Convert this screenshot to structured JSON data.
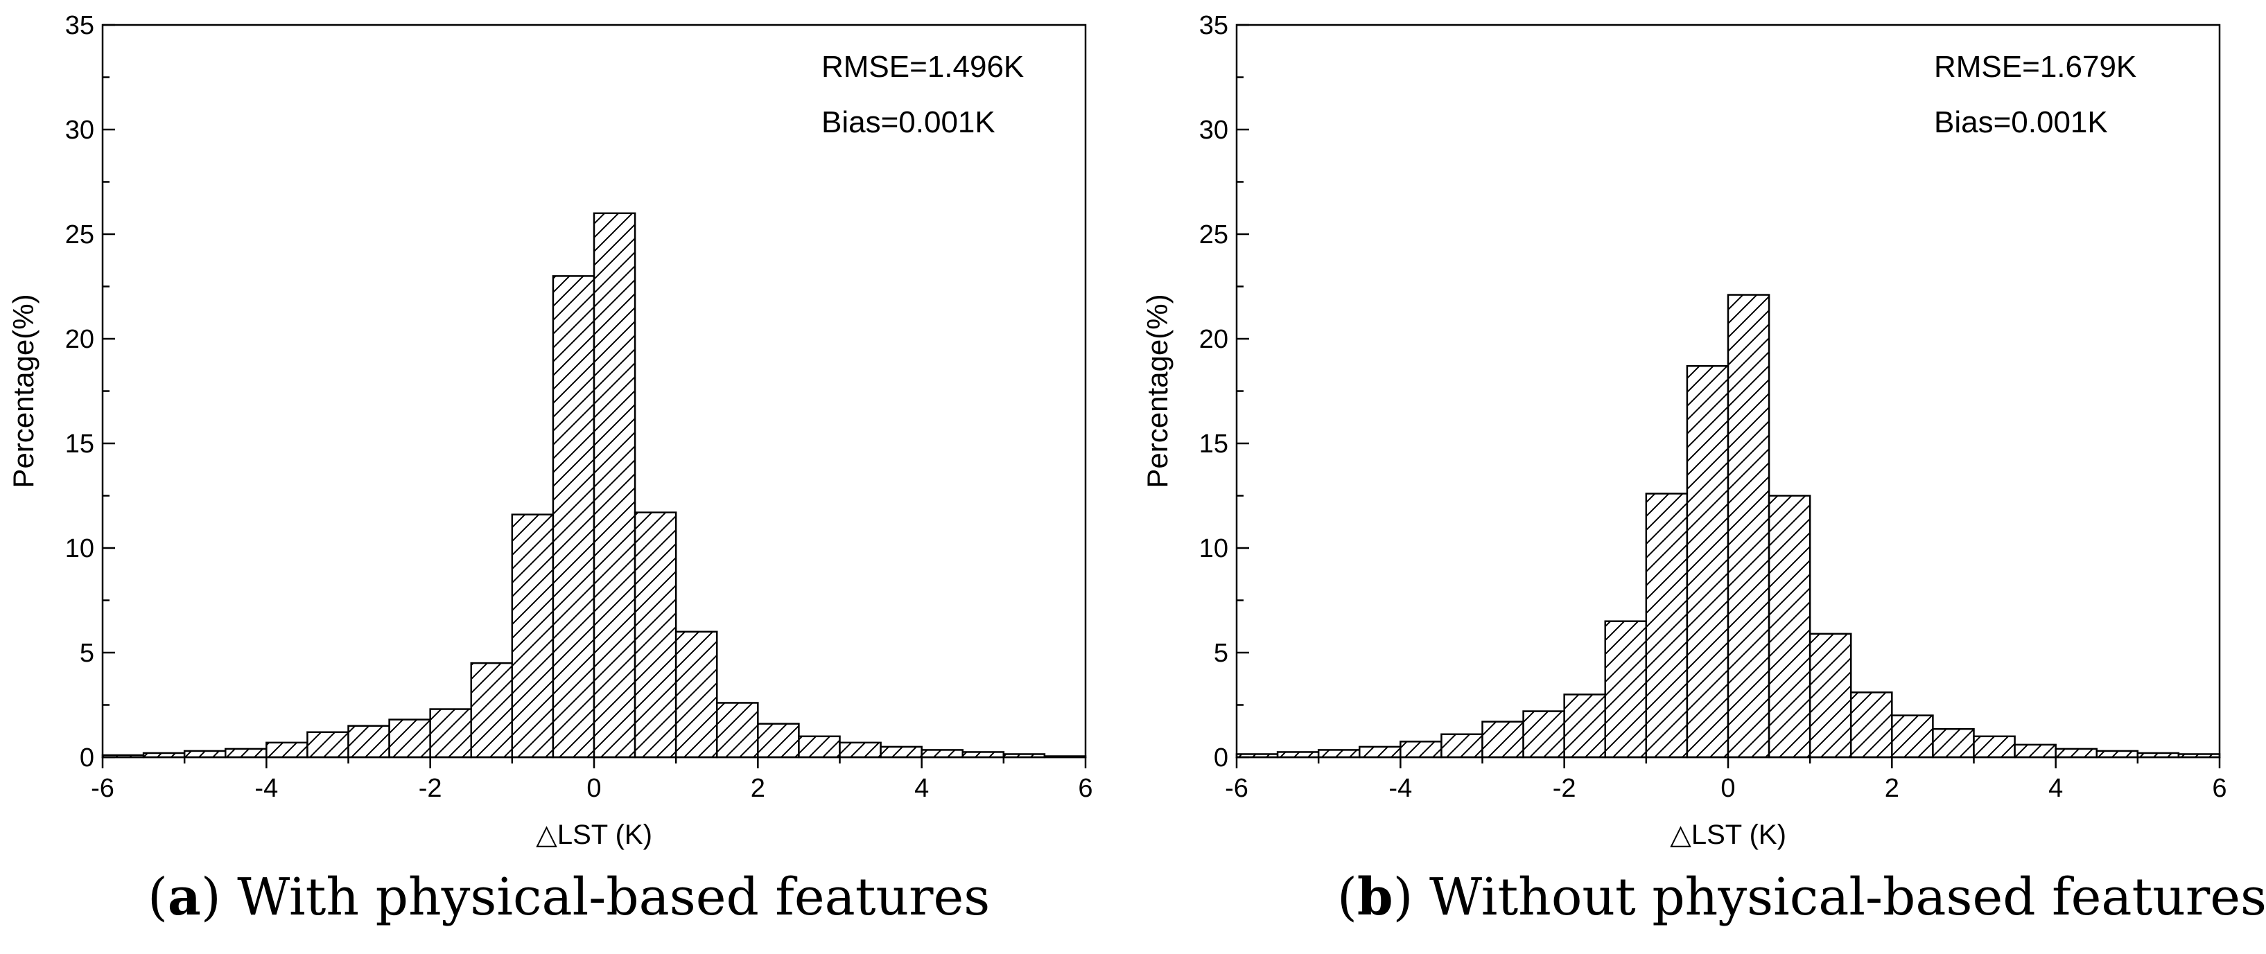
{
  "chart_data": [
    {
      "type": "bar",
      "caption_letter": "a",
      "caption_text": " With physical-based features",
      "xlabel": "△LST (K)",
      "ylabel": "Percentage(%)",
      "xlim": [
        -6,
        6
      ],
      "ylim": [
        0,
        35
      ],
      "xticks": [
        "-6",
        "-4",
        "-2",
        "0",
        "2",
        "4",
        "6"
      ],
      "yticks": [
        "0",
        "5",
        "10",
        "15",
        "20",
        "25",
        "30",
        "35"
      ],
      "annotations": [
        "RMSE=1.496K",
        "Bias=0.001K"
      ],
      "bin_edges": [
        -6,
        -5.5,
        -5,
        -4.5,
        -4,
        -3.5,
        -3,
        -2.5,
        -2,
        -1.5,
        -1,
        -0.5,
        0,
        0.5,
        1,
        1.5,
        2,
        2.5,
        3,
        3.5,
        4,
        4.5,
        5,
        5.5,
        6
      ],
      "values": [
        0.1,
        0.2,
        0.3,
        0.4,
        0.7,
        1.2,
        1.5,
        1.8,
        2.3,
        4.5,
        11.6,
        23.0,
        26.0,
        11.7,
        6.0,
        2.6,
        1.6,
        1.0,
        0.7,
        0.5,
        0.35,
        0.25,
        0.15,
        0.05
      ]
    },
    {
      "type": "bar",
      "caption_letter": "b",
      "caption_text": " Without physical-based features",
      "xlabel": "△LST (K)",
      "ylabel": "Percentage(%)",
      "xlim": [
        -6,
        6
      ],
      "ylim": [
        0,
        35
      ],
      "xticks": [
        "-6",
        "-4",
        "-2",
        "0",
        "2",
        "4",
        "6"
      ],
      "yticks": [
        "0",
        "5",
        "10",
        "15",
        "20",
        "25",
        "30",
        "35"
      ],
      "annotations": [
        "RMSE=1.679K",
        "Bias=0.001K"
      ],
      "bin_edges": [
        -6,
        -5.5,
        -5,
        -4.5,
        -4,
        -3.5,
        -3,
        -2.5,
        -2,
        -1.5,
        -1,
        -0.5,
        0,
        0.5,
        1,
        1.5,
        2,
        2.5,
        3,
        3.5,
        4,
        4.5,
        5,
        5.5,
        6
      ],
      "values": [
        0.15,
        0.25,
        0.35,
        0.5,
        0.75,
        1.1,
        1.7,
        2.2,
        3.0,
        6.5,
        12.6,
        18.7,
        22.1,
        12.5,
        5.9,
        3.1,
        2.0,
        1.35,
        1.0,
        0.6,
        0.4,
        0.3,
        0.2,
        0.15
      ]
    }
  ]
}
